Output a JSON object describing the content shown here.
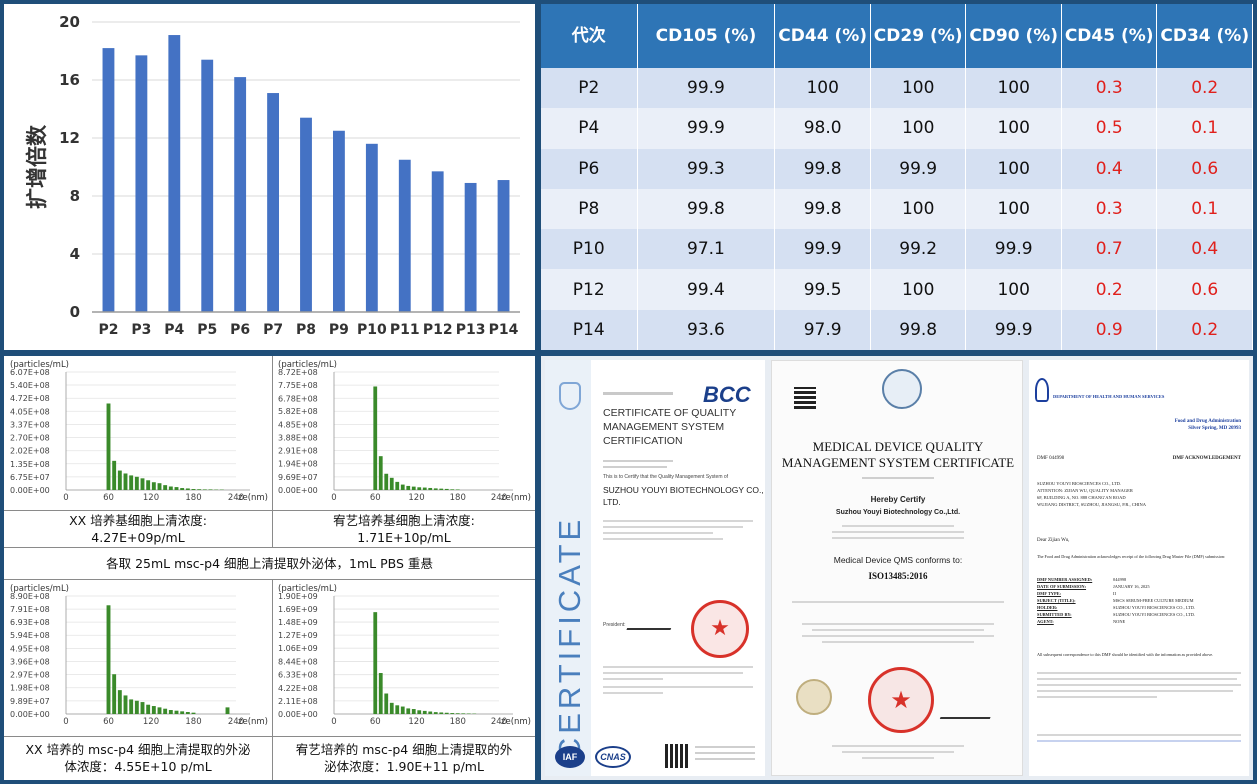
{
  "bar_panel": {
    "ylabel": "扩增倍数",
    "bar_color": "#4472c4"
  },
  "chart_data": [
    {
      "type": "bar",
      "categories": [
        "P2",
        "P3",
        "P4",
        "P5",
        "P6",
        "P7",
        "P8",
        "P9",
        "P10",
        "P11",
        "P12",
        "P13",
        "P14"
      ],
      "values": [
        18.2,
        17.7,
        19.1,
        17.4,
        16.2,
        15.1,
        13.4,
        12.5,
        11.6,
        10.5,
        9.7,
        8.9,
        9.1
      ],
      "ylabel": "扩增倍数",
      "yticks": [
        "0",
        "4",
        "8",
        "12",
        "16",
        "20"
      ],
      "ylim": [
        0,
        20
      ],
      "grid": true
    },
    {
      "type": "bar",
      "categories": [
        "0",
        "60",
        "120",
        "180",
        "240"
      ],
      "x_axis_label": "ze(nm)",
      "y_unit": "(particles/mL)",
      "yticks": [
        "0.00E+00",
        "6.75E+07",
        "1.35E+08",
        "2.02E+08",
        "2.70E+08",
        "3.37E+08",
        "4.05E+08",
        "4.72E+08",
        "5.40E+08",
        "6.07E+08"
      ],
      "ylim": [
        0,
        607000000
      ],
      "x": [
        60,
        68,
        76,
        84,
        92,
        100,
        108,
        116,
        124,
        132,
        140,
        148,
        156,
        164,
        172,
        180,
        188,
        196,
        204,
        212,
        220
      ],
      "values": [
        445000000,
        150000000,
        100000000,
        85000000,
        75000000,
        68000000,
        60000000,
        50000000,
        40000000,
        35000000,
        25000000,
        18000000,
        15000000,
        10000000,
        8000000,
        5000000,
        4000000,
        3000000,
        3000000,
        2000000,
        2000000
      ]
    },
    {
      "type": "bar",
      "categories": [
        "0",
        "60",
        "120",
        "180",
        "240"
      ],
      "x_axis_label": "ze(nm)",
      "y_unit": "(particles/mL)",
      "yticks": [
        "0.00E+00",
        "9.69E+07",
        "1.94E+08",
        "2.91E+08",
        "3.88E+08",
        "4.85E+08",
        "5.82E+08",
        "6.78E+08",
        "7.75E+08",
        "8.72E+08"
      ],
      "ylim": [
        0,
        872000000
      ],
      "x": [
        60,
        68,
        76,
        84,
        92,
        100,
        108,
        116,
        124,
        132,
        140,
        148,
        156,
        164,
        172,
        180
      ],
      "values": [
        765000000,
        250000000,
        120000000,
        90000000,
        60000000,
        40000000,
        30000000,
        25000000,
        20000000,
        18000000,
        15000000,
        12000000,
        10000000,
        8000000,
        5000000,
        4000000
      ]
    },
    {
      "type": "bar",
      "categories": [
        "0",
        "60",
        "120",
        "180",
        "240"
      ],
      "x_axis_label": "ze(nm)",
      "y_unit": "(particles/mL)",
      "yticks": [
        "0.00E+00",
        "9.89E+07",
        "1.98E+08",
        "2.97E+08",
        "3.96E+08",
        "4.95E+08",
        "5.94E+08",
        "6.93E+08",
        "7.91E+08",
        "8.90E+08"
      ],
      "ylim": [
        0,
        890000000
      ],
      "x": [
        60,
        68,
        76,
        84,
        92,
        100,
        108,
        116,
        124,
        132,
        140,
        148,
        156,
        164,
        172,
        180,
        228
      ],
      "values": [
        820000000,
        300000000,
        180000000,
        140000000,
        110000000,
        100000000,
        90000000,
        70000000,
        60000000,
        50000000,
        40000000,
        30000000,
        25000000,
        20000000,
        15000000,
        10000000,
        50000000
      ]
    },
    {
      "type": "bar",
      "categories": [
        "0",
        "60",
        "120",
        "180",
        "240"
      ],
      "x_axis_label": "ze(nm)",
      "y_unit": "(particles/mL)",
      "yticks": [
        "0.00E+00",
        "2.11E+08",
        "4.22E+08",
        "6.33E+08",
        "8.44E+08",
        "1.06E+09",
        "1.27E+09",
        "1.48E+09",
        "1.69E+09",
        "1.90E+09"
      ],
      "ylim": [
        0,
        1900000000
      ],
      "x": [
        60,
        68,
        76,
        84,
        92,
        100,
        108,
        116,
        124,
        132,
        140,
        148,
        156,
        164,
        172,
        180,
        188,
        196,
        204
      ],
      "values": [
        1640000000,
        660000000,
        330000000,
        180000000,
        140000000,
        120000000,
        90000000,
        80000000,
        60000000,
        50000000,
        40000000,
        30000000,
        25000000,
        20000000,
        15000000,
        12000000,
        10000000,
        8000000,
        6000000
      ]
    }
  ],
  "table": {
    "headers": [
      "代次",
      "CD105 (%)",
      "CD44 (%)",
      "CD29 (%)",
      "CD90 (%)",
      "CD45 (%)",
      "CD34 (%)"
    ],
    "rows": [
      [
        "P2",
        "99.9",
        "100",
        "100",
        "100",
        "0.3",
        "0.2"
      ],
      [
        "P4",
        "99.9",
        "98.0",
        "100",
        "100",
        "0.5",
        "0.1"
      ],
      [
        "P6",
        "99.3",
        "99.8",
        "99.9",
        "100",
        "0.4",
        "0.6"
      ],
      [
        "P8",
        "99.8",
        "99.8",
        "100",
        "100",
        "0.3",
        "0.1"
      ],
      [
        "P10",
        "97.1",
        "99.9",
        "99.2",
        "99.9",
        "0.7",
        "0.4"
      ],
      [
        "P12",
        "99.4",
        "99.5",
        "100",
        "100",
        "0.2",
        "0.6"
      ],
      [
        "P14",
        "93.6",
        "97.9",
        "99.8",
        "99.9",
        "0.9",
        "0.2"
      ]
    ],
    "header_color": "#2e75b6",
    "highlight_color": "#e0201c"
  },
  "nta": {
    "bar_color": "#3a8a2a",
    "caption_1_line1": "XX 培养基细胞上清浓度:",
    "caption_1_line2": "4.27E+09p/mL",
    "caption_2_line1": "宥艺培养基细胞上清浓度:",
    "caption_2_line2": "1.71E+10p/mL",
    "note": "各取 25mL msc-p4 细胞上清提取外泌体，1mL PBS 重悬",
    "caption_3_line1": "XX 培养的 msc-p4 细胞上清提取的外泌",
    "caption_3_line2": "体浓度：4.55E+10 p/mL",
    "caption_4_line1": "宥艺培养的 msc-p4 细胞上清提取的外",
    "caption_4_line2": "泌体浓度：1.90E+11 p/mL"
  },
  "certificates": {
    "bcc": {
      "logo": "BCC",
      "title_line1": "CERTIFICATE OF QUALITY",
      "title_line2": "MANAGEMENT SYSTEM",
      "title_line3": "CERTIFICATION",
      "statement": "This is to Certify that the Quality Management System of",
      "company_line1": "SUZHOU YOUYI BIOTECHNOLOGY CO.,",
      "company_line2": "LTD.",
      "side_text": "CERTIFICATE",
      "president": "President:",
      "iaf": "IAF",
      "cnas": "CNAS",
      "side_color": "#4a7fbd",
      "seal_color": "#d8322a"
    },
    "iso": {
      "title_line1": "MEDICAL DEVICE QUALITY",
      "title_line2": "MANAGEMENT SYSTEM CERTIFICATE",
      "hereby": "Hereby Certify",
      "company": "Suzhou Youyi Biotechnology Co.,Ltd.",
      "conforms": "Medical Device QMS conforms to:",
      "standard": "ISO13485:2016"
    },
    "fda": {
      "header": "DEPARTMENT OF HEALTH AND HUMAN SERVICES",
      "agency_line1": "Food and Drug Administration",
      "agency_line2": "Silver Spring, MD 20993",
      "dmf_number": "DMF 044998",
      "ack": "DMF ACKNOWLEDGEMENT",
      "addr_line1": "SUZHOU YOUYI BIOSCIENCES CO., LTD.",
      "addr_line2": "ATTENTION: ZIJIAN WU, QUALITY MANAGER",
      "addr_line3": "6F, BUILDING A, NO. 888 CHANG'AN ROAD",
      "addr_line4": "WUJIANG DISTRICT, SUZHOU, JIANGSU, P.R., CHINA",
      "dear": "Dear Zijian Wu,",
      "body": "The Food and Drug Administration acknowledges receipt of the following Drug Master File (DMF) submission:",
      "fields": [
        [
          "DMF NUMBER ASSIGNED:",
          "044998"
        ],
        [
          "DATE OF SUBMISSION:",
          "JANUARY 16, 2025"
        ],
        [
          "DMF TYPE:",
          "II"
        ],
        [
          "SUBJECT (TITLE):",
          "MSCS SERUM-FREE CULTURE MEDIUM"
        ],
        [
          "HOLDER:",
          "SUZHOU YOUYI BIOSCIENCES CO., LTD."
        ],
        [
          "SUBMITTED BY:",
          "SUZHOU YOUYI BIOSCIENCES CO., LTD."
        ],
        [
          "AGENT:",
          "NONE"
        ]
      ],
      "body2": "All subsequent correspondence to this DMF should be identified with the information as provided above.",
      "header_color": "#1c3f9e"
    }
  }
}
